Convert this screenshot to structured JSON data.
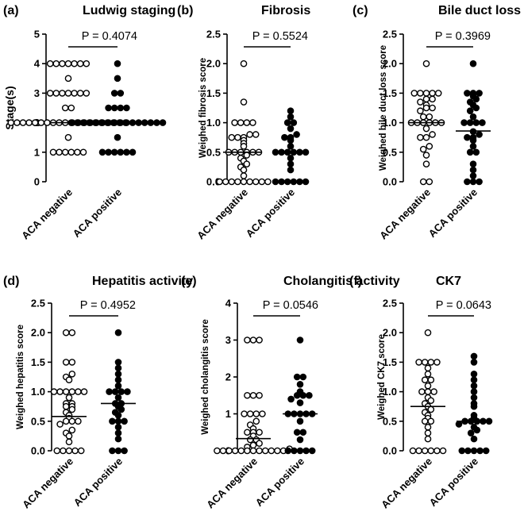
{
  "chart_data": [
    {
      "type": "scatter",
      "panel_label": "(a)",
      "title": "Ludwig staging",
      "ylabel": "Stage(s)",
      "categories": [
        "ACA negative",
        "ACA positive"
      ],
      "ylim": [
        0,
        5
      ],
      "yticks": [
        "0",
        "1",
        "2",
        "3",
        "4",
        "5"
      ],
      "p_value": "P = 0.4074",
      "series": [
        {
          "category": "ACA negative",
          "marker": "open",
          "median": 2,
          "values": [
            1,
            1,
            1,
            1,
            1,
            1,
            1.5,
            2,
            2,
            2,
            2,
            2,
            2,
            2,
            2,
            2,
            2,
            2,
            2,
            2,
            2,
            2,
            2,
            2,
            2,
            2,
            2,
            2.5,
            2.5,
            3,
            3,
            3,
            3,
            3,
            3,
            3,
            3.5,
            4,
            4,
            4,
            4,
            4,
            4,
            4
          ]
        },
        {
          "category": "ACA positive",
          "marker": "filled",
          "median": 2,
          "values": [
            1,
            1,
            1,
            1,
            1,
            1,
            1.5,
            2,
            2,
            2,
            2,
            2,
            2,
            2,
            2,
            2,
            2,
            2,
            2,
            2,
            2,
            2,
            2,
            2.5,
            2.5,
            2.5,
            2.5,
            3,
            3,
            3.5,
            4
          ]
        }
      ]
    },
    {
      "type": "scatter",
      "panel_label": "(b)",
      "title": "Fibrosis",
      "ylabel": "Weighed fibrosis score",
      "categories": [
        "ACA negative",
        "ACA positive"
      ],
      "ylim": [
        0,
        2.5
      ],
      "yticks": [
        "0.0",
        "0.5",
        "1.0",
        "1.5",
        "2.0",
        "2.5"
      ],
      "p_value": "P = 0.5524",
      "series": [
        {
          "category": "ACA negative",
          "marker": "open",
          "median": 0.5,
          "values": [
            0,
            0,
            0,
            0,
            0,
            0,
            0,
            0,
            0,
            0.1,
            0.2,
            0.25,
            0.3,
            0.35,
            0.4,
            0.45,
            0.5,
            0.5,
            0.5,
            0.5,
            0.5,
            0.5,
            0.6,
            0.65,
            0.7,
            0.75,
            0.75,
            0.75,
            0.8,
            0.8,
            1.0,
            1.0,
            1.0,
            1.0,
            1.35,
            2.0
          ]
        },
        {
          "category": "ACA positive",
          "marker": "filled",
          "median": 0.5,
          "values": [
            0,
            0,
            0,
            0,
            0,
            0,
            0.2,
            0.3,
            0.4,
            0.5,
            0.5,
            0.5,
            0.5,
            0.5,
            0.5,
            0.6,
            0.7,
            0.75,
            0.75,
            0.8,
            0.9,
            1.0,
            1.0,
            1.1,
            1.2
          ]
        }
      ]
    },
    {
      "type": "scatter",
      "panel_label": "(c)",
      "title": "Bile duct loss",
      "ylabel": "Weighed bile duct loss score",
      "categories": [
        "ACA negative",
        "ACA positive"
      ],
      "ylim": [
        0,
        2.5
      ],
      "yticks": [
        "0.0",
        "0.5",
        "1.0",
        "1.5",
        "2.0",
        "2.5"
      ],
      "p_value": "P = 0.3969",
      "series": [
        {
          "category": "ACA negative",
          "marker": "open",
          "median": 1.0,
          "values": [
            0,
            0,
            0.3,
            0.45,
            0.55,
            0.6,
            0.75,
            0.75,
            0.8,
            0.9,
            1.0,
            1.0,
            1.0,
            1.0,
            1.0,
            1.0,
            1.1,
            1.1,
            1.2,
            1.25,
            1.25,
            1.3,
            1.35,
            1.4,
            1.4,
            1.5,
            1.5,
            1.5,
            1.5,
            1.5,
            2.0
          ]
        },
        {
          "category": "ACA positive",
          "marker": "filled",
          "median": 0.86,
          "values": [
            0,
            0,
            0,
            0.1,
            0.2,
            0.3,
            0.5,
            0.5,
            0.6,
            0.7,
            0.75,
            0.75,
            0.8,
            0.85,
            1.0,
            1.0,
            1.0,
            1.0,
            1.1,
            1.2,
            1.25,
            1.3,
            1.35,
            1.4,
            1.45,
            1.5,
            1.5,
            1.5,
            2.0
          ]
        }
      ]
    },
    {
      "type": "scatter",
      "panel_label": "(d)",
      "title": "Hepatitis activity",
      "ylabel": "Weighed hepatitis score",
      "categories": [
        "ACA negative",
        "ACA positive"
      ],
      "ylim": [
        0,
        2.5
      ],
      "yticks": [
        "0.0",
        "0.5",
        "1.0",
        "1.5",
        "2.0",
        "2.5"
      ],
      "p_value": "P = 0.4952",
      "series": [
        {
          "category": "ACA negative",
          "marker": "open",
          "median": 0.58,
          "values": [
            0,
            0,
            0,
            0,
            0,
            0.15,
            0.25,
            0.3,
            0.35,
            0.45,
            0.5,
            0.5,
            0.5,
            0.55,
            0.6,
            0.65,
            0.7,
            0.75,
            0.75,
            0.8,
            0.8,
            0.9,
            1.0,
            1.0,
            1.0,
            1.0,
            1.0,
            1.0,
            1.2,
            1.25,
            1.3,
            1.5,
            1.5,
            2.0,
            2.0
          ]
        },
        {
          "category": "ACA positive",
          "marker": "filled",
          "median": 0.8,
          "values": [
            0,
            0,
            0,
            0.2,
            0.3,
            0.4,
            0.5,
            0.5,
            0.5,
            0.6,
            0.65,
            0.7,
            0.75,
            0.8,
            0.8,
            0.9,
            1.0,
            1.0,
            1.0,
            1.0,
            1.1,
            1.2,
            1.3,
            1.4,
            1.5,
            2.0
          ]
        }
      ]
    },
    {
      "type": "scatter",
      "panel_label": "(e)",
      "title": "Cholangitis activity",
      "ylabel": "Weighed cholangitis score",
      "categories": [
        "ACA negative",
        "ACA positive"
      ],
      "ylim": [
        0,
        4
      ],
      "yticks": [
        "0",
        "1",
        "2",
        "3",
        "4"
      ],
      "p_value": "P = 0.0546",
      "series": [
        {
          "category": "ACA negative",
          "marker": "open",
          "median": 0.33,
          "values": [
            0,
            0,
            0,
            0,
            0,
            0,
            0,
            0,
            0,
            0,
            0,
            0,
            0.05,
            0.1,
            0.15,
            0.2,
            0.3,
            0.3,
            0.4,
            0.5,
            0.5,
            0.5,
            0.6,
            0.7,
            0.8,
            1.0,
            1.0,
            1.0,
            1.0,
            1.5,
            1.5,
            1.5,
            3.0,
            3.0,
            3.0
          ]
        },
        {
          "category": "ACA positive",
          "marker": "filled",
          "median": 1.0,
          "values": [
            0,
            0,
            0,
            0,
            0,
            0.3,
            0.5,
            0.5,
            0.8,
            1.0,
            1.0,
            1.0,
            1.0,
            1.0,
            1.3,
            1.4,
            1.5,
            1.5,
            1.5,
            1.6,
            1.8,
            2.0,
            2.0,
            3.0
          ]
        }
      ]
    },
    {
      "type": "scatter",
      "panel_label": "(f)",
      "title": "CK7",
      "ylabel": "Weighed CK7 score",
      "categories": [
        "ACA negative",
        "ACA positive"
      ],
      "ylim": [
        0,
        2.5
      ],
      "yticks": [
        "0.0",
        "0.5",
        "1.0",
        "1.5",
        "2.0",
        "2.5"
      ],
      "p_value": "P = 0.0643",
      "series": [
        {
          "category": "ACA negative",
          "marker": "open",
          "median": 0.75,
          "values": [
            0,
            0,
            0,
            0,
            0,
            0,
            0.2,
            0.3,
            0.4,
            0.5,
            0.5,
            0.55,
            0.6,
            0.65,
            0.7,
            0.75,
            0.8,
            0.85,
            0.9,
            1.0,
            1.0,
            1.0,
            1.1,
            1.2,
            1.2,
            1.3,
            1.4,
            1.5,
            1.5,
            1.5,
            1.5,
            2.0
          ]
        },
        {
          "category": "ACA positive",
          "marker": "filled",
          "median": 0.5,
          "values": [
            0,
            0,
            0,
            0,
            0,
            0.2,
            0.3,
            0.35,
            0.4,
            0.45,
            0.5,
            0.5,
            0.5,
            0.5,
            0.5,
            0.55,
            0.6,
            0.75,
            0.8,
            0.9,
            1.0,
            1.1,
            1.2,
            1.3,
            1.5,
            1.6
          ]
        }
      ]
    }
  ]
}
